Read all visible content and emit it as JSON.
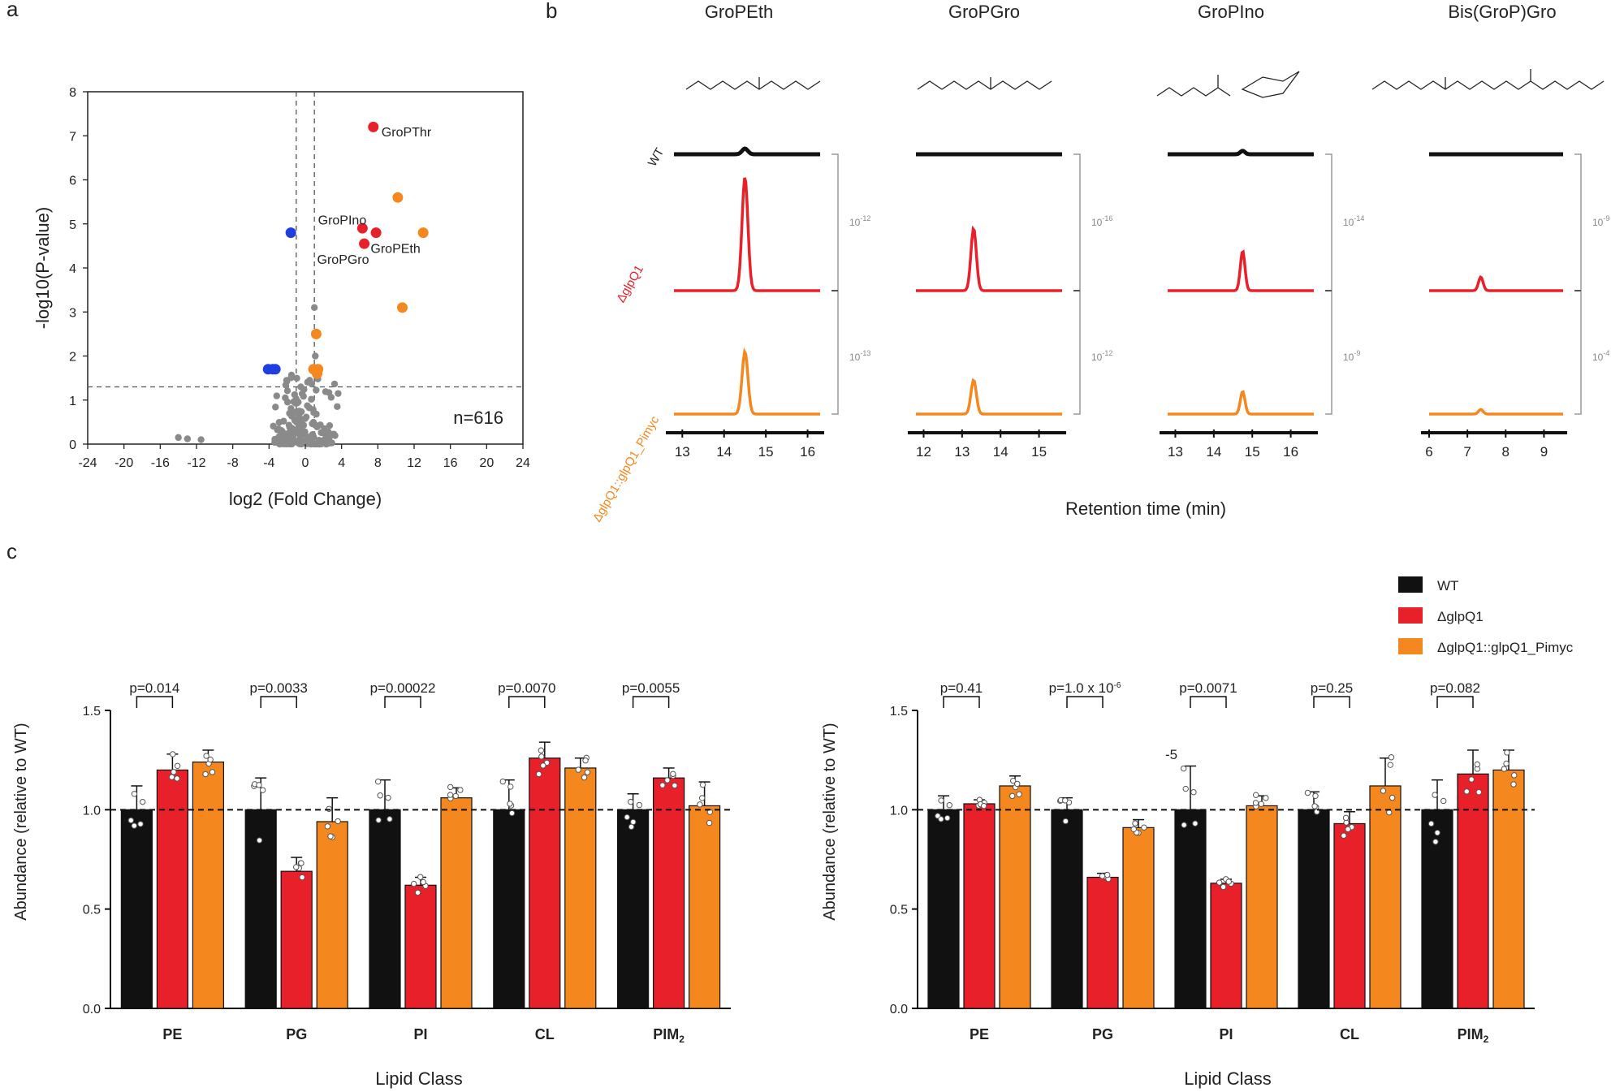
{
  "panel_labels": {
    "a": "a",
    "b": "b",
    "c": "c"
  },
  "colors": {
    "wt": "#111111",
    "ko": "#e8202a",
    "comp": "#f5871f",
    "blue": "#1f3fe0",
    "grey": "#8a8a8a"
  },
  "chart_data": [
    {
      "id": "volcano",
      "type": "scatter",
      "xlabel": "log2 (Fold Change)",
      "ylabel": "-log10(P-value)",
      "xlim": [
        -24,
        24
      ],
      "ylim": [
        0,
        8
      ],
      "xticks": [
        "-24",
        "-20",
        "-16",
        "-12",
        "-8",
        "-4",
        "0",
        "4",
        "8",
        "12",
        "16",
        "20",
        "24"
      ],
      "yticks": [
        "0",
        "1",
        "2",
        "3",
        "4",
        "5",
        "6",
        "7",
        "8"
      ],
      "threshold_x": [
        -1,
        1
      ],
      "threshold_y": 1.3,
      "n_label": "n=616",
      "points_red": [
        {
          "x": 7.5,
          "y": 7.2
        },
        {
          "x": 6.3,
          "y": 4.9
        },
        {
          "x": 7.8,
          "y": 4.8
        },
        {
          "x": 6.5,
          "y": 4.55
        }
      ],
      "points_orange": [
        {
          "x": 10.2,
          "y": 5.6
        },
        {
          "x": 13,
          "y": 4.8
        },
        {
          "x": 10.7,
          "y": 3.1
        },
        {
          "x": 1.2,
          "y": 2.5
        },
        {
          "x": 0.9,
          "y": 1.7
        },
        {
          "x": 1.3,
          "y": 1.6
        },
        {
          "x": 1.4,
          "y": 1.7
        }
      ],
      "points_blue": [
        {
          "x": -1.6,
          "y": 4.8
        },
        {
          "x": -4.1,
          "y": 1.7
        },
        {
          "x": -3.6,
          "y": 1.7
        },
        {
          "x": -3.3,
          "y": 1.7
        }
      ],
      "annotations": [
        {
          "text": "GroPThr",
          "x": 8.4,
          "y": 7.1
        },
        {
          "text": "GroPIno",
          "x": 1.4,
          "y": 5.1
        },
        {
          "text": "GroPEth",
          "x": 7.2,
          "y": 4.45
        },
        {
          "text": "GroPGro",
          "x": 1.3,
          "y": 4.2
        }
      ]
    },
    {
      "id": "chromatograms",
      "type": "line",
      "xlabel": "Retention time (min)",
      "row_labels": [
        "WT",
        "ΔglpQ1",
        "ΔglpQ1::glpQ1_Pimyc"
      ],
      "panels": [
        {
          "title": "GroPEth",
          "xticks": [
            "13",
            "14",
            "15",
            "16"
          ],
          "xlim": [
            12.8,
            16.3
          ],
          "peak": 14.5,
          "width": 0.07,
          "heights": [
            0.05,
            1.0,
            0.55
          ],
          "scales": [
            "10",
            "-12",
            "10",
            "-13"
          ]
        },
        {
          "title": "GroPGro",
          "xticks": [
            "12",
            "13",
            "14",
            "15"
          ],
          "xlim": [
            11.8,
            15.6
          ],
          "peak": 13.3,
          "width": 0.07,
          "heights": [
            0.0,
            0.55,
            0.3
          ],
          "scales": [
            "10",
            "-16",
            "10",
            "-12"
          ]
        },
        {
          "title": "GroPIno",
          "xticks": [
            "13",
            "14",
            "15",
            "16"
          ],
          "xlim": [
            12.8,
            16.6
          ],
          "peak": 14.75,
          "width": 0.06,
          "heights": [
            0.03,
            0.35,
            0.2
          ],
          "scales": [
            "10",
            "-14",
            "10",
            "-9"
          ]
        },
        {
          "title": "Bis(GroP)Gro",
          "xticks": [
            "6",
            "7",
            "8",
            "9"
          ],
          "xlim": [
            6.0,
            9.5
          ],
          "peak": 7.35,
          "width": 0.06,
          "heights": [
            0.0,
            0.12,
            0.04
          ],
          "scales": [
            "10",
            "-9",
            "10",
            "-4"
          ]
        }
      ]
    },
    {
      "id": "lipids-left",
      "type": "bar",
      "xlabel": "Lipid Class",
      "ylabel": "Abundance (relative to WT)",
      "ylim": [
        0,
        1.5
      ],
      "yticks": [
        "0.0",
        "0.5",
        "1.0",
        "1.5"
      ],
      "categories": [
        "PE",
        "PG",
        "PI",
        "CL",
        "PIM"
      ],
      "pvalues": [
        "p=0.014",
        "p=0.0033",
        "p=0.00022",
        "p=0.0070",
        "p=0.0055"
      ],
      "series": [
        {
          "name": "WT",
          "values": [
            1.0,
            1.0,
            1.0,
            1.0,
            1.0
          ],
          "errors": [
            0.12,
            0.16,
            0.15,
            0.15,
            0.08
          ]
        },
        {
          "name": "ΔglpQ1",
          "values": [
            1.2,
            0.69,
            0.62,
            1.26,
            1.16
          ],
          "errors": [
            0.08,
            0.07,
            0.04,
            0.08,
            0.05
          ]
        },
        {
          "name": "ΔglpQ1::glpQ1_Pimyc",
          "values": [
            1.24,
            0.94,
            1.06,
            1.21,
            1.02
          ],
          "errors": [
            0.06,
            0.12,
            0.05,
            0.05,
            0.12
          ]
        }
      ]
    },
    {
      "id": "lipids-right",
      "type": "bar",
      "xlabel": "Lipid Class",
      "ylabel": "Abundance (relative to WT)",
      "ylim": [
        0,
        1.5
      ],
      "yticks": [
        "0.0",
        "0.5",
        "1.0",
        "1.5"
      ],
      "categories": [
        "PE",
        "PG",
        "PI",
        "CL",
        "PIM"
      ],
      "pvalues": [
        "p=0.41",
        "p=1.0 x 10",
        "p=0.0071",
        "p=0.25",
        "p=0.082"
      ],
      "series": [
        {
          "name": "WT",
          "values": [
            1.0,
            1.0,
            1.0,
            1.0,
            1.0
          ],
          "errors": [
            0.07,
            0.06,
            0.22,
            0.09,
            0.15
          ]
        },
        {
          "name": "ΔglpQ1",
          "values": [
            1.03,
            0.66,
            0.63,
            0.93,
            1.18
          ],
          "errors": [
            0.02,
            0.02,
            0.02,
            0.06,
            0.12
          ]
        },
        {
          "name": "ΔglpQ1::glpQ1_Pimyc",
          "values": [
            1.12,
            0.91,
            1.02,
            1.12,
            1.2
          ],
          "errors": [
            0.05,
            0.04,
            0.05,
            0.14,
            0.1
          ]
        }
      ]
    }
  ],
  "legend": {
    "wt": "WT",
    "ko": "ΔglpQ1",
    "comp": "ΔglpQ1::glpQ1_Pimyc"
  },
  "extra_text": {
    "pim_sub": "2",
    "pval_exp": "-6",
    "pval_exp_loose": "-5"
  }
}
